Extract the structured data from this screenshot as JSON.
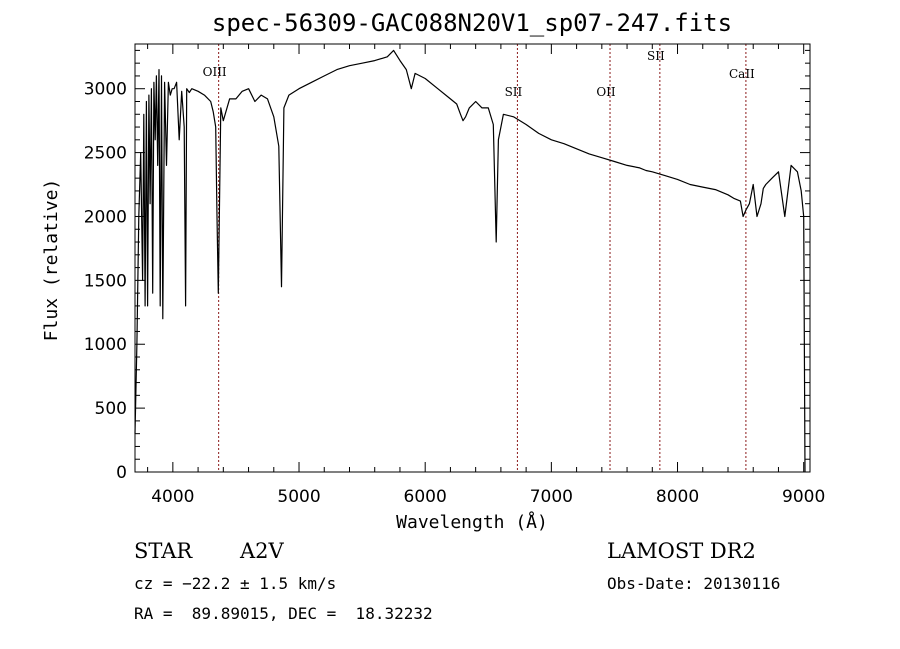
{
  "chart_data": {
    "type": "line",
    "title": "spec-56309-GAC088N20V1_sp07-247.fits",
    "xlabel": "Wavelength (Å)",
    "ylabel": "Flux (relative)",
    "xlim": [
      3700,
      9050
    ],
    "ylim": [
      0,
      3350
    ],
    "xticks": [
      4000,
      5000,
      6000,
      7000,
      8000,
      9000
    ],
    "yticks": [
      0,
      500,
      1000,
      1500,
      2000,
      2500,
      3000
    ],
    "grid": false,
    "line_markers": [
      {
        "label": "OIII",
        "x": 4363
      },
      {
        "label": "SII",
        "x": 6731
      },
      {
        "label": "OII",
        "x": 7465
      },
      {
        "label": "SII",
        "x": 7860
      },
      {
        "label": "CaII",
        "x": 8542
      }
    ],
    "series": [
      {
        "color": "#000000",
        "x": [
          3700,
          3715,
          3730,
          3745,
          3760,
          3770,
          3780,
          3790,
          3800,
          3810,
          3820,
          3830,
          3840,
          3850,
          3860,
          3870,
          3880,
          3890,
          3900,
          3910,
          3920,
          3935,
          3950,
          3965,
          3980,
          3995,
          4010,
          4030,
          4050,
          4070,
          4090,
          4101,
          4110,
          4130,
          4150,
          4200,
          4250,
          4300,
          4320,
          4340,
          4350,
          4360,
          4380,
          4400,
          4450,
          4500,
          4550,
          4600,
          4650,
          4700,
          4750,
          4800,
          4840,
          4861,
          4880,
          4920,
          5000,
          5100,
          5200,
          5300,
          5400,
          5500,
          5600,
          5700,
          5750,
          5800,
          5850,
          5890,
          5920,
          6000,
          6100,
          6200,
          6250,
          6280,
          6300,
          6320,
          6350,
          6400,
          6450,
          6500,
          6540,
          6563,
          6580,
          6620,
          6700,
          6800,
          6900,
          7000,
          7100,
          7200,
          7300,
          7400,
          7500,
          7600,
          7700,
          7750,
          7800,
          7900,
          8000,
          8100,
          8200,
          8300,
          8400,
          8450,
          8498,
          8520,
          8542,
          8570,
          8600,
          8630,
          8662,
          8680,
          8700,
          8750,
          8800,
          8850,
          8900,
          8950,
          8980,
          9000,
          9010
        ],
        "y": [
          300,
          1000,
          2000,
          2500,
          1500,
          2800,
          1300,
          2900,
          1300,
          2950,
          2100,
          3000,
          1400,
          3050,
          2600,
          3100,
          2400,
          3150,
          1300,
          3100,
          1200,
          3050,
          2400,
          3050,
          2950,
          3000,
          3000,
          3050,
          2600,
          2980,
          2700,
          1300,
          3000,
          2970,
          3000,
          2980,
          2950,
          2900,
          2820,
          2700,
          2000,
          1400,
          2850,
          2750,
          2920,
          2920,
          2980,
          3000,
          2900,
          2950,
          2920,
          2780,
          2550,
          1450,
          2850,
          2950,
          3000,
          3050,
          3100,
          3150,
          3180,
          3200,
          3220,
          3250,
          3300,
          3220,
          3150,
          3000,
          3120,
          3080,
          3000,
          2920,
          2880,
          2800,
          2750,
          2780,
          2850,
          2900,
          2850,
          2850,
          2720,
          1800,
          2600,
          2800,
          2780,
          2720,
          2650,
          2600,
          2570,
          2530,
          2490,
          2460,
          2430,
          2400,
          2380,
          2360,
          2350,
          2320,
          2290,
          2250,
          2230,
          2210,
          2170,
          2140,
          2120,
          2000,
          2050,
          2100,
          2250,
          2000,
          2100,
          2220,
          2250,
          2300,
          2350,
          2000,
          2400,
          2350,
          2200,
          2000,
          0
        ]
      }
    ]
  },
  "info": {
    "obj_class": "STAR",
    "subclass": "A2V",
    "survey": "LAMOST DR2",
    "cz": "cz = −22.2 ± 1.5 km/s",
    "obs_date": "Obs-Date: 20130116",
    "coords": "RA =  89.89015, DEC =  18.32232"
  }
}
